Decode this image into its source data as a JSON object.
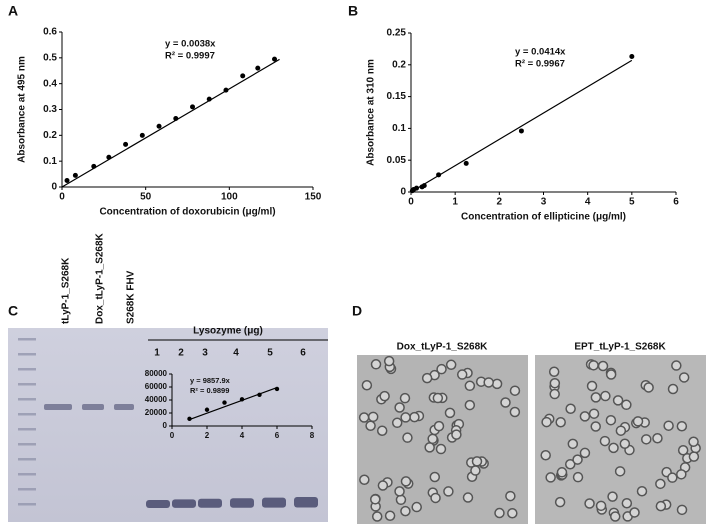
{
  "chart_data": [
    {
      "type": "scatter",
      "x": [
        3,
        8,
        19,
        28,
        38,
        48,
        58,
        68,
        78,
        88,
        98,
        108,
        117,
        127
      ],
      "values": [
        0.025,
        0.045,
        0.08,
        0.115,
        0.165,
        0.2,
        0.235,
        0.265,
        0.31,
        0.34,
        0.375,
        0.43,
        0.46,
        0.495
      ],
      "trendline": {
        "x": [
          0,
          130
        ],
        "values": [
          0,
          0.494
        ]
      },
      "equation": "y = 0.0038x",
      "r2": "R² = 0.9997",
      "xlabel": "Concentration of doxorubicin (μg/ml)",
      "ylabel": "Absorbance at 495 nm",
      "xlim": [
        0,
        150
      ],
      "ylim": [
        0,
        0.6
      ],
      "xticks": [
        0,
        50,
        100,
        150
      ],
      "yticks": [
        0,
        0.1,
        0.2,
        0.3,
        0.4,
        0.5,
        0.6
      ],
      "color": "#000000"
    },
    {
      "type": "scatter",
      "x": [
        0.03,
        0.06,
        0.125,
        0.25,
        0.3,
        0.625,
        1.25,
        2.5,
        5
      ],
      "values": [
        0.002,
        0.004,
        0.006,
        0.008,
        0.01,
        0.027,
        0.045,
        0.096,
        0.213
      ],
      "trendline": {
        "x": [
          0,
          5
        ],
        "values": [
          0,
          0.207
        ]
      },
      "equation": "y = 0.0414x",
      "r2": "R² = 0.9967",
      "xlabel": "Concentration of ellipticine (μg/ml)",
      "ylabel": "Absorbance at 310 nm",
      "xlim": [
        0,
        6
      ],
      "ylim": [
        0,
        0.25
      ],
      "xticks": [
        0,
        1,
        2,
        3,
        4,
        5,
        6
      ],
      "yticks": [
        0,
        0.05,
        0.1,
        0.15,
        0.2,
        0.25
      ],
      "color": "#000000"
    },
    {
      "type": "scatter",
      "x": [
        1,
        2,
        3,
        4,
        5,
        6
      ],
      "values": [
        11000,
        25000,
        36000,
        41000,
        48000,
        57000
      ],
      "trendline": {
        "x": [
          1,
          6
        ],
        "values": [
          9858,
          59147
        ]
      },
      "equation": "y = 9857.9x",
      "r2": "R² = 0.9899",
      "xlim": [
        0,
        8
      ],
      "ylim": [
        0,
        80000
      ],
      "xticks": [
        0,
        2,
        4,
        6,
        8
      ],
      "yticks": [
        0,
        20000,
        40000,
        60000,
        80000
      ],
      "color": "#000000"
    }
  ],
  "panel_labels": [
    "A",
    "B",
    "C",
    "D"
  ],
  "gel": {
    "lanes": [
      "tLyP-1_S268K",
      "Dox_tLyP-1_S268K",
      "S268K FHV"
    ],
    "lysozyme_label": "Lysozyme (μg)",
    "lysozyme_lanes": [
      "1",
      "2",
      "3",
      "4",
      "5",
      "6"
    ]
  },
  "tem": {
    "titles": [
      "Dox_tLyP-1_S268K",
      "EPT_tLyP-1_S268K"
    ]
  }
}
